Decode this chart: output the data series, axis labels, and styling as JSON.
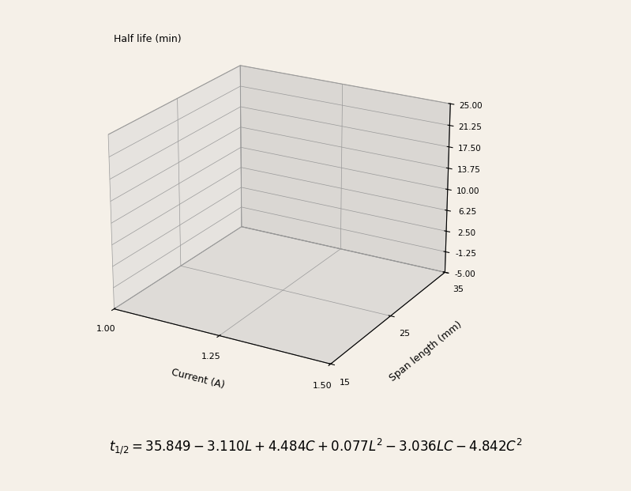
{
  "title_z": "Half life (min)",
  "xlabel": "Current (A)",
  "ylabel": "Span length (mm)",
  "L_range": [
    15,
    35
  ],
  "C_range": [
    1.0,
    1.5
  ],
  "coeffs": {
    "const": 35.849,
    "L": -3.11,
    "C": 4.484,
    "L2": 0.077,
    "LC": -3.036,
    "C2": -4.842
  },
  "zlim": [
    -5.0,
    25.0
  ],
  "zticks": [
    -5.0,
    -1.25,
    2.5,
    6.25,
    10.0,
    13.75,
    17.5,
    21.25,
    25.0
  ],
  "C_ticks": [
    1.0,
    1.25,
    1.5
  ],
  "L_ticks": [
    15,
    25,
    35
  ],
  "surface_color": "#a8c8a0",
  "surface_edge_color": "#2a5a2a",
  "background_color": "#f5f0e8",
  "wall_color_left": "#c0c0c0",
  "wall_color_back": "#d8d8d8",
  "wall_color_bottom": "#c8c8c8",
  "n_grid": 40,
  "elev": 22,
  "azim": -60
}
